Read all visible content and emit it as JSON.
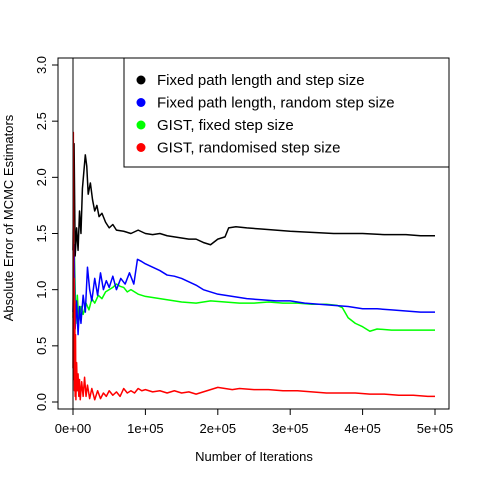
{
  "chart_data": {
    "type": "line",
    "title": "",
    "xlabel": "Number of Iterations",
    "ylabel": "Absolute Error of MCMC Estimators",
    "xlim": [
      0,
      500000
    ],
    "ylim": [
      0,
      3.0
    ],
    "x_ticks": [
      0,
      100000,
      200000,
      300000,
      400000,
      500000
    ],
    "x_tick_labels": [
      "0e+00",
      "1e+05",
      "2e+05",
      "3e+05",
      "4e+05",
      "5e+05"
    ],
    "y_ticks": [
      0,
      0.5,
      1.0,
      1.5,
      2.0,
      2.5,
      3.0
    ],
    "y_tick_labels": [
      "0.0",
      "0.5",
      "1.0",
      "1.5",
      "2.0",
      "2.5",
      "3.0"
    ],
    "grid": false,
    "legend_position": "top-right",
    "series": [
      {
        "name": "Fixed path length and step size",
        "color": "#000000",
        "points": [
          [
            0,
            1.35
          ],
          [
            1500,
            2.3
          ],
          [
            3000,
            1.3
          ],
          [
            5000,
            1.55
          ],
          [
            7000,
            1.35
          ],
          [
            9000,
            1.7
          ],
          [
            11000,
            1.5
          ],
          [
            13000,
            1.9
          ],
          [
            15000,
            2.05
          ],
          [
            17000,
            2.2
          ],
          [
            19000,
            2.1
          ],
          [
            21000,
            1.85
          ],
          [
            24000,
            1.95
          ],
          [
            27000,
            1.8
          ],
          [
            30000,
            1.7
          ],
          [
            33000,
            1.75
          ],
          [
            36000,
            1.65
          ],
          [
            40000,
            1.68
          ],
          [
            45000,
            1.6
          ],
          [
            50000,
            1.55
          ],
          [
            55000,
            1.58
          ],
          [
            60000,
            1.53
          ],
          [
            70000,
            1.52
          ],
          [
            80000,
            1.5
          ],
          [
            90000,
            1.53
          ],
          [
            100000,
            1.5
          ],
          [
            110000,
            1.49
          ],
          [
            120000,
            1.5
          ],
          [
            130000,
            1.48
          ],
          [
            140000,
            1.47
          ],
          [
            150000,
            1.46
          ],
          [
            160000,
            1.45
          ],
          [
            170000,
            1.45
          ],
          [
            180000,
            1.42
          ],
          [
            190000,
            1.4
          ],
          [
            200000,
            1.45
          ],
          [
            210000,
            1.47
          ],
          [
            215000,
            1.55
          ],
          [
            225000,
            1.56
          ],
          [
            240000,
            1.55
          ],
          [
            260000,
            1.54
          ],
          [
            280000,
            1.53
          ],
          [
            300000,
            1.52
          ],
          [
            330000,
            1.51
          ],
          [
            360000,
            1.5
          ],
          [
            400000,
            1.5
          ],
          [
            430000,
            1.49
          ],
          [
            460000,
            1.49
          ],
          [
            480000,
            1.48
          ],
          [
            500000,
            1.48
          ]
        ]
      },
      {
        "name": "Fixed path length, random step size",
        "color": "#0000ff",
        "points": [
          [
            0,
            0.8
          ],
          [
            1500,
            1.4
          ],
          [
            3000,
            0.65
          ],
          [
            5000,
            0.9
          ],
          [
            7000,
            0.6
          ],
          [
            9000,
            0.85
          ],
          [
            11000,
            0.7
          ],
          [
            14000,
            0.95
          ],
          [
            17000,
            0.8
          ],
          [
            20000,
            1.2
          ],
          [
            23000,
            1.0
          ],
          [
            26000,
            0.9
          ],
          [
            30000,
            1.1
          ],
          [
            34000,
            0.95
          ],
          [
            38000,
            1.15
          ],
          [
            42000,
            1.0
          ],
          [
            46000,
            1.08
          ],
          [
            50000,
            1.02
          ],
          [
            55000,
            1.12
          ],
          [
            60000,
            1.0
          ],
          [
            66000,
            1.1
          ],
          [
            72000,
            1.05
          ],
          [
            78000,
            1.15
          ],
          [
            84000,
            1.05
          ],
          [
            89000,
            1.27
          ],
          [
            95000,
            1.25
          ],
          [
            100000,
            1.23
          ],
          [
            110000,
            1.2
          ],
          [
            120000,
            1.17
          ],
          [
            130000,
            1.13
          ],
          [
            140000,
            1.12
          ],
          [
            150000,
            1.1
          ],
          [
            160000,
            1.07
          ],
          [
            170000,
            1.04
          ],
          [
            180000,
            1.0
          ],
          [
            190000,
            0.98
          ],
          [
            200000,
            0.96
          ],
          [
            220000,
            0.94
          ],
          [
            240000,
            0.92
          ],
          [
            260000,
            0.91
          ],
          [
            280000,
            0.9
          ],
          [
            300000,
            0.9
          ],
          [
            320000,
            0.88
          ],
          [
            340000,
            0.87
          ],
          [
            360000,
            0.86
          ],
          [
            380000,
            0.85
          ],
          [
            400000,
            0.83
          ],
          [
            420000,
            0.83
          ],
          [
            440000,
            0.82
          ],
          [
            460000,
            0.81
          ],
          [
            480000,
            0.8
          ],
          [
            500000,
            0.8
          ]
        ]
      },
      {
        "name": "GIST, fixed step size",
        "color": "#00ff00",
        "points": [
          [
            0,
            0.75
          ],
          [
            2000,
            1.3
          ],
          [
            4000,
            0.7
          ],
          [
            6000,
            0.95
          ],
          [
            8000,
            0.72
          ],
          [
            11000,
            0.85
          ],
          [
            14000,
            0.78
          ],
          [
            18000,
            0.88
          ],
          [
            22000,
            0.82
          ],
          [
            26000,
            0.92
          ],
          [
            30000,
            0.88
          ],
          [
            35000,
            0.95
          ],
          [
            40000,
            0.92
          ],
          [
            45000,
            0.98
          ],
          [
            50000,
            1.0
          ],
          [
            55000,
            1.02
          ],
          [
            60000,
            1.05
          ],
          [
            65000,
            1.03
          ],
          [
            70000,
            1.02
          ],
          [
            75000,
            0.98
          ],
          [
            80000,
            1.0
          ],
          [
            90000,
            0.96
          ],
          [
            100000,
            0.94
          ],
          [
            110000,
            0.93
          ],
          [
            120000,
            0.92
          ],
          [
            130000,
            0.91
          ],
          [
            140000,
            0.9
          ],
          [
            150000,
            0.89
          ],
          [
            170000,
            0.88
          ],
          [
            190000,
            0.9
          ],
          [
            210000,
            0.89
          ],
          [
            230000,
            0.88
          ],
          [
            250000,
            0.88
          ],
          [
            270000,
            0.89
          ],
          [
            290000,
            0.88
          ],
          [
            310000,
            0.88
          ],
          [
            330000,
            0.87
          ],
          [
            350000,
            0.87
          ],
          [
            365000,
            0.86
          ],
          [
            372000,
            0.84
          ],
          [
            380000,
            0.75
          ],
          [
            390000,
            0.7
          ],
          [
            400000,
            0.67
          ],
          [
            410000,
            0.63
          ],
          [
            420000,
            0.65
          ],
          [
            440000,
            0.64
          ],
          [
            460000,
            0.64
          ],
          [
            480000,
            0.64
          ],
          [
            500000,
            0.64
          ]
        ]
      },
      {
        "name": "GIST, randomised step size",
        "color": "#ff0000",
        "points": [
          [
            0,
            0.3
          ],
          [
            500,
            2.4
          ],
          [
            1000,
            0.2
          ],
          [
            1500,
            1.1
          ],
          [
            2000,
            0.1
          ],
          [
            2500,
            0.9
          ],
          [
            3000,
            0.05
          ],
          [
            3500,
            0.6
          ],
          [
            4000,
            0.02
          ],
          [
            5000,
            0.35
          ],
          [
            6000,
            0.1
          ],
          [
            7000,
            0.25
          ],
          [
            8000,
            0.05
          ],
          [
            9000,
            0.2
          ],
          [
            10000,
            0.02
          ],
          [
            12000,
            0.18
          ],
          [
            14000,
            0.05
          ],
          [
            16000,
            0.22
          ],
          [
            18000,
            0.05
          ],
          [
            20000,
            0.15
          ],
          [
            23000,
            0.03
          ],
          [
            26000,
            0.12
          ],
          [
            30000,
            0.02
          ],
          [
            34000,
            0.1
          ],
          [
            38000,
            0.03
          ],
          [
            42000,
            0.08
          ],
          [
            46000,
            0.05
          ],
          [
            50000,
            0.1
          ],
          [
            55000,
            0.06
          ],
          [
            60000,
            0.09
          ],
          [
            65000,
            0.05
          ],
          [
            70000,
            0.12
          ],
          [
            75000,
            0.08
          ],
          [
            80000,
            0.1
          ],
          [
            85000,
            0.08
          ],
          [
            90000,
            0.12
          ],
          [
            95000,
            0.1
          ],
          [
            100000,
            0.11
          ],
          [
            110000,
            0.09
          ],
          [
            120000,
            0.1
          ],
          [
            130000,
            0.08
          ],
          [
            140000,
            0.1
          ],
          [
            150000,
            0.08
          ],
          [
            160000,
            0.09
          ],
          [
            170000,
            0.07
          ],
          [
            180000,
            0.09
          ],
          [
            190000,
            0.11
          ],
          [
            200000,
            0.13
          ],
          [
            210000,
            0.12
          ],
          [
            220000,
            0.11
          ],
          [
            230000,
            0.12
          ],
          [
            250000,
            0.11
          ],
          [
            270000,
            0.11
          ],
          [
            290000,
            0.1
          ],
          [
            310000,
            0.1
          ],
          [
            330000,
            0.09
          ],
          [
            350000,
            0.08
          ],
          [
            370000,
            0.08
          ],
          [
            390000,
            0.08
          ],
          [
            410000,
            0.07
          ],
          [
            430000,
            0.07
          ],
          [
            450000,
            0.06
          ],
          [
            470000,
            0.06
          ],
          [
            490000,
            0.05
          ],
          [
            500000,
            0.05
          ]
        ]
      }
    ]
  }
}
